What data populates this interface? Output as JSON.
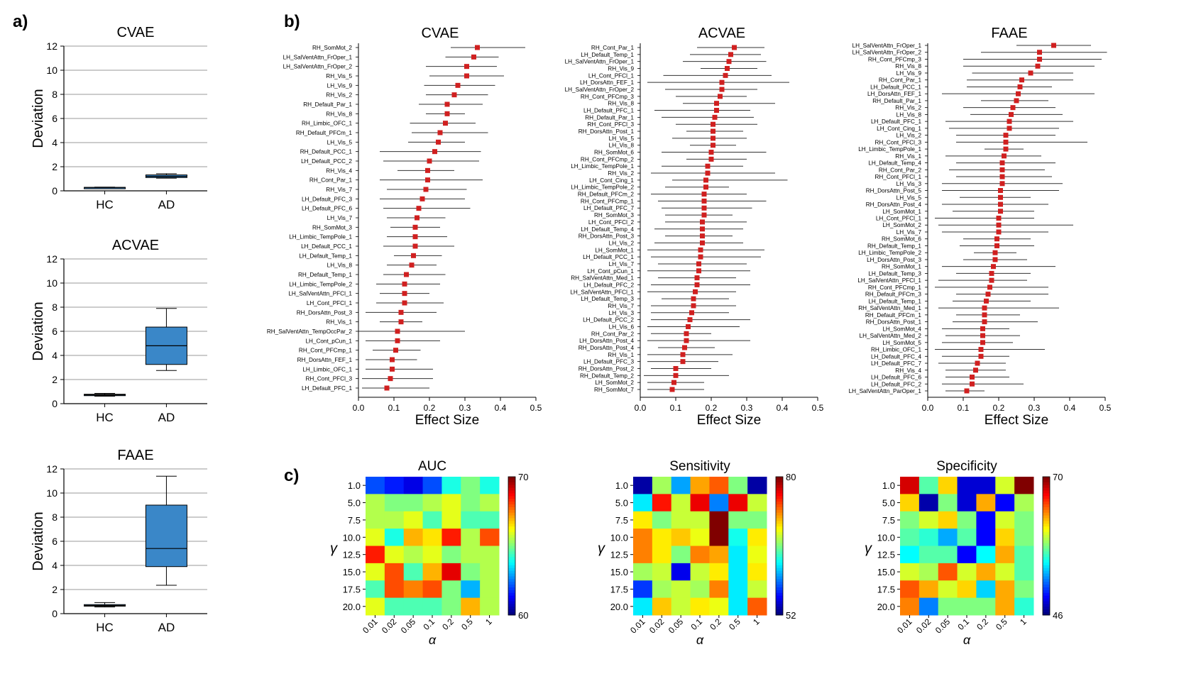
{
  "panel_labels": {
    "a": "a)",
    "b": "b)",
    "c": "c)"
  },
  "chart_data": [
    {
      "type": "box",
      "title": "CVAE",
      "ylabel": "Deviation",
      "categories": [
        "HC",
        "AD"
      ],
      "ylim": [
        0,
        12
      ],
      "yticks": [
        0,
        2,
        4,
        6,
        8,
        10,
        12
      ],
      "grid": true,
      "boxes": [
        {
          "min": 0.25,
          "q1": 0.27,
          "median": 0.28,
          "q3": 0.29,
          "max": 0.31
        },
        {
          "min": 1.05,
          "q1": 1.1,
          "median": 1.2,
          "q3": 1.32,
          "max": 1.42
        }
      ]
    },
    {
      "type": "box",
      "title": "ACVAE",
      "ylabel": "Deviation",
      "categories": [
        "HC",
        "AD"
      ],
      "ylim": [
        0,
        12
      ],
      "yticks": [
        0,
        2,
        4,
        6,
        8,
        10,
        12
      ],
      "grid": true,
      "boxes": [
        {
          "min": 0.62,
          "q1": 0.7,
          "median": 0.73,
          "q3": 0.78,
          "max": 0.85
        },
        {
          "min": 2.75,
          "q1": 3.25,
          "median": 4.8,
          "q3": 6.35,
          "max": 7.9
        }
      ]
    },
    {
      "type": "box",
      "title": "FAAE",
      "ylabel": "Deviation",
      "categories": [
        "HC",
        "AD"
      ],
      "ylim": [
        0,
        12
      ],
      "yticks": [
        0,
        2,
        4,
        6,
        8,
        10,
        12
      ],
      "grid": true,
      "boxes": [
        {
          "min": 0.55,
          "q1": 0.62,
          "median": 0.68,
          "q3": 0.75,
          "max": 0.92
        },
        {
          "min": 2.35,
          "q1": 3.9,
          "median": 5.4,
          "q3": 9.0,
          "max": 11.4
        }
      ]
    },
    {
      "type": "forest",
      "title": "CVAE",
      "xlabel": "Effect Size",
      "xlim": [
        0,
        0.5
      ],
      "xticks": [
        "0.0",
        "0.1",
        "0.2",
        "0.3",
        "0.4",
        "0.5"
      ],
      "labels": [
        "RH_SomMot_2",
        "LH_SalVentAttn_FrOper_1",
        "LH_SalVentAttn_FrOper_2",
        "RH_Vis_5",
        "LH_Vis_9",
        "RH_Vis_2",
        "RH_Default_Par_1",
        "RH_Vis_8",
        "RH_Limbic_OFC_1",
        "RH_Default_PFCm_1",
        "LH_Vis_5",
        "RH_Default_PCC_1",
        "LH_Default_PCC_2",
        "RH_Vis_4",
        "RH_Cont_Par_1",
        "RH_Vis_7",
        "LH_Default_PFC_3",
        "LH_Default_PFC_6",
        "LH_Vis_7",
        "RH_SomMot_3",
        "LH_Limbic_TempPole_1",
        "LH_Default_PCC_1",
        "LH_Default_Temp_1",
        "LH_Vis_8",
        "RH_Default_Temp_1",
        "LH_Limbic_TempPole_2",
        "LH_SalVentAttn_PFCl_1",
        "LH_Cont_PFCl_1",
        "RH_DorsAttn_Post_3",
        "RH_Vis_1",
        "RH_SalVentAttn_TempOccPar_2",
        "LH_Cont_pCun_1",
        "RH_Cont_PFCmp_1",
        "RH_DorsAttn_FEF_1",
        "LH_Limbic_OFC_1",
        "RH_Cont_PFCl_3",
        "LH_Default_PFC_1"
      ],
      "effects": [
        0.335,
        0.325,
        0.305,
        0.305,
        0.28,
        0.27,
        0.25,
        0.25,
        0.245,
        0.23,
        0.225,
        0.215,
        0.2,
        0.195,
        0.195,
        0.19,
        0.18,
        0.17,
        0.165,
        0.16,
        0.16,
        0.16,
        0.155,
        0.15,
        0.135,
        0.13,
        0.13,
        0.13,
        0.12,
        0.12,
        0.11,
        0.11,
        0.105,
        0.095,
        0.095,
        0.09,
        0.08
      ],
      "lower": [
        0.26,
        0.245,
        0.19,
        0.2,
        0.185,
        0.19,
        0.17,
        0.19,
        0.145,
        0.15,
        0.14,
        0.06,
        0.07,
        0.11,
        0.06,
        0.08,
        0.06,
        0.07,
        0.08,
        0.09,
        0.08,
        0.07,
        0.1,
        0.08,
        0.07,
        0.05,
        0.06,
        0.05,
        0.02,
        0.06,
        0.0,
        0.02,
        0.04,
        0.02,
        0.02,
        0.01,
        0.01
      ],
      "upper": [
        0.47,
        0.395,
        0.39,
        0.41,
        0.385,
        0.365,
        0.35,
        0.3,
        0.33,
        0.365,
        0.3,
        0.345,
        0.34,
        0.27,
        0.35,
        0.305,
        0.3,
        0.315,
        0.245,
        0.23,
        0.25,
        0.27,
        0.235,
        0.22,
        0.245,
        0.23,
        0.2,
        0.24,
        0.22,
        0.18,
        0.3,
        0.23,
        0.175,
        0.165,
        0.21,
        0.21,
        0.2
      ]
    },
    {
      "type": "forest",
      "title": "ACVAE",
      "xlabel": "Effect Size",
      "xlim": [
        0,
        0.5
      ],
      "xticks": [
        "0.0",
        "0.1",
        "0.2",
        "0.3",
        "0.4",
        "0.5"
      ],
      "labels": [
        "RH_Cont_Par_1",
        "LH_Default_Temp_1",
        "LH_SalVentAttn_FrOper_1",
        "RH_Vis_9",
        "LH_Cont_PFCl_1",
        "LH_DorsAttn_FEF_1",
        "LH_SalVentAttn_FrOper_2",
        "RH_Cont_PFCmp_3",
        "RH_Vis_8",
        "LH_Default_PFC_1",
        "RH_Default_Par_1",
        "RH_Cont_PFCl_3",
        "RH_DorsAttn_Post_1",
        "LH_Vis_5",
        "LH_Vis_8",
        "RH_SomMot_6",
        "RH_Cont_PFCmp_2",
        "LH_Limbic_TempPole_1",
        "RH_Vis_2",
        "LH_Cont_Cing_1",
        "LH_Limbic_TempPole_2",
        "RH_Default_PFCm_2",
        "RH_Cont_PFCmp_1",
        "LH_Default_PFC_7",
        "RH_SomMot_3",
        "LH_Cont_PFCl_2",
        "LH_Default_Temp_4",
        "RH_DorsAttn_Post_3",
        "LH_Vis_2",
        "LH_SomMot_1",
        "LH_Default_PCC_1",
        "LH_Vis_7",
        "LH_Cont_pCun_1",
        "RH_SalVentAttn_Med_1",
        "LH_Default_PFC_2",
        "LH_SalVentAttn_PFCl_1",
        "LH_Default_Temp_3",
        "RH_Vis_7",
        "LH_Vis_3",
        "LH_Default_PCC_2",
        "LH_Vis_6",
        "RH_Cont_Par_2",
        "LH_DorsAttn_Post_4",
        "RH_DorsAttn_Post_4",
        "RH_Vis_1",
        "LH_Default_PFC_3",
        "RH_DorsAttn_Post_2",
        "RH_Default_Temp_2",
        "LH_SomMot_2",
        "RH_SomMot_7"
      ],
      "effects": [
        0.265,
        0.255,
        0.25,
        0.245,
        0.24,
        0.23,
        0.23,
        0.225,
        0.215,
        0.215,
        0.21,
        0.205,
        0.205,
        0.205,
        0.205,
        0.2,
        0.2,
        0.19,
        0.19,
        0.185,
        0.185,
        0.18,
        0.18,
        0.18,
        0.18,
        0.175,
        0.175,
        0.175,
        0.175,
        0.17,
        0.17,
        0.165,
        0.165,
        0.16,
        0.16,
        0.155,
        0.15,
        0.15,
        0.145,
        0.14,
        0.135,
        0.13,
        0.13,
        0.125,
        0.12,
        0.12,
        0.1,
        0.1,
        0.095,
        0.09
      ],
      "lower": [
        0.16,
        0.14,
        0.12,
        0.17,
        0.065,
        0.02,
        0.07,
        0.1,
        0.12,
        0.04,
        0.06,
        0.1,
        0.13,
        0.09,
        0.14,
        0.06,
        0.13,
        0.06,
        0.03,
        0.09,
        0.07,
        0.03,
        0.05,
        0.06,
        0.07,
        0.07,
        0.04,
        0.07,
        0.04,
        0.02,
        0.03,
        0.05,
        0.02,
        0.05,
        0.03,
        0.02,
        0.06,
        0.03,
        0.03,
        0.03,
        0.02,
        0.03,
        0.02,
        0.05,
        0.02,
        0.02,
        0.03,
        0.01,
        0.02,
        0.02
      ],
      "upper": [
        0.35,
        0.34,
        0.355,
        0.33,
        0.37,
        0.42,
        0.33,
        0.3,
        0.38,
        0.31,
        0.32,
        0.33,
        0.29,
        0.3,
        0.27,
        0.355,
        0.3,
        0.29,
        0.38,
        0.415,
        0.25,
        0.3,
        0.355,
        0.315,
        0.26,
        0.3,
        0.29,
        0.26,
        0.29,
        0.35,
        0.34,
        0.3,
        0.31,
        0.27,
        0.31,
        0.27,
        0.25,
        0.27,
        0.25,
        0.31,
        0.28,
        0.2,
        0.31,
        0.21,
        0.26,
        0.22,
        0.2,
        0.25,
        0.18,
        0.18
      ]
    },
    {
      "type": "forest",
      "title": "FAAE",
      "xlabel": "Effect Size",
      "xlim": [
        0,
        0.5
      ],
      "xticks": [
        "0.0",
        "0.1",
        "0.2",
        "0.3",
        "0.4",
        "0.5"
      ],
      "labels": [
        "LH_SalVentAttn_FrOper_1",
        "LH_SalVentAttn_FrOper_2",
        "RH_Cont_PFCmp_3",
        "RH_Vis_8",
        "LH_Vis_9",
        "RH_Cont_Par_1",
        "LH_Default_PCC_1",
        "LH_DorsAttn_FEF_1",
        "RH_Default_Par_1",
        "RH_Vis_2",
        "LH_Vis_8",
        "LH_Default_PFC_1",
        "LH_Cont_Cing_1",
        "LH_Vis_2",
        "RH_Cont_PFCl_3",
        "LH_Limbic_TempPole_1",
        "RH_Vis_1",
        "LH_Default_Temp_4",
        "RH_Cont_Par_2",
        "RH_Cont_PFCl_1",
        "LH_Vis_3",
        "RH_DorsAttn_Post_5",
        "LH_Vis_5",
        "RH_DorsAttn_Post_4",
        "LH_SomMot_1",
        "LH_Cont_PFCl_1",
        "LH_SomMot_2",
        "LH_Vis_7",
        "RH_SomMot_6",
        "RH_Default_Temp_1",
        "LH_Limbic_TempPole_2",
        "LH_DorsAttn_Post_3",
        "RH_SomMot_1",
        "LH_Default_Temp_3",
        "LH_SalVentAttn_PFCl_1",
        "RH_Cont_PFCmp_1",
        "RH_Default_PFCm_3",
        "LH_Default_Temp_1",
        "RH_SalVentAttn_Med_1",
        "RH_Default_PFCm_1",
        "RH_DorsAttn_Post_1",
        "LH_SomMot_4",
        "LH_SalVentAttn_Med_2",
        "LH_SomMot_5",
        "RH_Limbic_OFC_1",
        "LH_Default_PFC_4",
        "LH_Default_PFC_7",
        "RH_Vis_4",
        "LH_Default_PFC_6",
        "LH_Default_PFC_2",
        "LH_SalVentAttn_ParOper_1"
      ],
      "effects": [
        0.355,
        0.315,
        0.315,
        0.31,
        0.29,
        0.265,
        0.26,
        0.255,
        0.25,
        0.24,
        0.235,
        0.23,
        0.23,
        0.22,
        0.22,
        0.22,
        0.215,
        0.21,
        0.21,
        0.21,
        0.21,
        0.205,
        0.205,
        0.205,
        0.205,
        0.2,
        0.2,
        0.2,
        0.195,
        0.195,
        0.19,
        0.19,
        0.185,
        0.18,
        0.18,
        0.175,
        0.17,
        0.165,
        0.16,
        0.16,
        0.16,
        0.155,
        0.155,
        0.155,
        0.15,
        0.15,
        0.14,
        0.135,
        0.125,
        0.125,
        0.11
      ],
      "lower": [
        0.25,
        0.15,
        0.1,
        0.1,
        0.125,
        0.11,
        0.11,
        0.04,
        0.15,
        0.1,
        0.12,
        0.05,
        0.06,
        0.08,
        0.08,
        0.16,
        0.05,
        0.08,
        0.06,
        0.08,
        0.04,
        0.04,
        0.09,
        0.04,
        0.07,
        0.02,
        0.03,
        0.04,
        0.1,
        0.09,
        0.13,
        0.1,
        0.04,
        0.08,
        0.03,
        0.02,
        0.08,
        0.07,
        0.03,
        0.08,
        0.07,
        0.04,
        0.05,
        0.04,
        0.02,
        0.04,
        0.03,
        0.05,
        0.05,
        0.04,
        0.05
      ],
      "upper": [
        0.46,
        0.505,
        0.49,
        0.47,
        0.41,
        0.41,
        0.35,
        0.47,
        0.34,
        0.36,
        0.38,
        0.41,
        0.37,
        0.36,
        0.45,
        0.27,
        0.32,
        0.36,
        0.33,
        0.35,
        0.38,
        0.37,
        0.29,
        0.34,
        0.3,
        0.3,
        0.41,
        0.34,
        0.29,
        0.3,
        0.25,
        0.28,
        0.36,
        0.29,
        0.28,
        0.34,
        0.34,
        0.29,
        0.37,
        0.26,
        0.31,
        0.23,
        0.26,
        0.24,
        0.33,
        0.23,
        0.22,
        0.22,
        0.23,
        0.27,
        0.16
      ]
    },
    {
      "type": "heatmap",
      "title": "AUC",
      "xlabel": "α",
      "ylabel": "γ",
      "xcategories": [
        "0.01",
        "0.02",
        "0.05",
        "0.1",
        "0.2",
        "0.5",
        "1"
      ],
      "ycategories": [
        "1.0",
        "5.0",
        "7.5",
        "10.0",
        "12.5",
        "15.0",
        "17.5",
        "20.0"
      ],
      "colorbar": {
        "min": 60,
        "max": 70,
        "min_label": "60",
        "max_label": "70"
      },
      "values": [
        [
          62,
          61.5,
          61,
          62,
          64,
          65,
          64
        ],
        [
          65.5,
          65,
          65,
          65.5,
          66,
          65,
          65.5
        ],
        [
          65.5,
          65.5,
          66,
          64.5,
          66,
          64.5,
          64.5
        ],
        [
          66,
          64,
          67,
          66.5,
          68.5,
          65.5,
          68
        ],
        [
          68.5,
          66,
          65.5,
          66,
          65,
          65.5,
          65.5
        ],
        [
          66,
          68,
          64.5,
          67,
          69,
          65,
          65.5
        ],
        [
          64.5,
          68,
          67.5,
          68,
          65,
          63,
          65.5
        ],
        [
          66,
          64.5,
          64.5,
          64.5,
          65,
          67,
          65.5
        ]
      ]
    },
    {
      "type": "heatmap",
      "title": "Sensitivity",
      "xlabel": "α",
      "ylabel": "γ",
      "xcategories": [
        "0.01",
        "0.02",
        "0.05",
        "0.1",
        "0.2",
        "0.5",
        "1"
      ],
      "ycategories": [
        "1.0",
        "5.0",
        "7.5",
        "10.0",
        "12.5",
        "15.0",
        "17.5",
        "20.0"
      ],
      "colorbar": {
        "min": 52,
        "max": 80,
        "min_label": "52",
        "max_label": "80"
      },
      "values": [
        [
          53,
          67,
          60,
          72,
          74,
          66,
          53
        ],
        [
          62,
          76,
          68,
          77,
          59,
          77,
          68
        ],
        [
          70,
          66,
          68,
          68,
          80,
          66,
          66
        ],
        [
          73,
          70,
          71,
          69,
          80,
          63,
          70
        ],
        [
          73,
          70,
          66,
          73,
          72,
          62,
          69
        ],
        [
          67,
          68,
          55,
          68,
          70,
          62,
          70
        ],
        [
          57,
          67,
          68,
          67,
          73,
          62,
          68
        ],
        [
          62,
          71,
          68,
          70,
          69,
          62,
          74
        ]
      ]
    },
    {
      "type": "heatmap",
      "title": "Specificity",
      "xlabel": "α",
      "ylabel": "γ",
      "xcategories": [
        "0.01",
        "0.02",
        "0.05",
        "0.1",
        "0.2",
        "0.5",
        "1"
      ],
      "ycategories": [
        "1.0",
        "5.0",
        "7.5",
        "10.0",
        "12.5",
        "15.0",
        "17.5",
        "20.0"
      ],
      "colorbar": {
        "min": 46,
        "max": 70,
        "min_label": "46",
        "max_label": "70"
      },
      "values": [
        [
          68,
          57,
          62,
          48,
          48,
          60,
          70
        ],
        [
          62,
          47,
          58,
          48,
          63,
          49,
          59
        ],
        [
          58,
          60,
          62,
          58,
          49,
          60,
          58
        ],
        [
          57,
          56,
          53,
          57,
          49,
          62,
          58
        ],
        [
          55,
          57,
          57,
          49,
          55,
          63,
          57
        ],
        [
          60,
          59,
          65,
          60,
          63,
          60,
          57
        ],
        [
          65,
          63,
          60,
          62,
          54,
          63,
          58
        ],
        [
          64,
          52,
          58,
          58,
          58,
          63,
          56
        ]
      ]
    }
  ]
}
